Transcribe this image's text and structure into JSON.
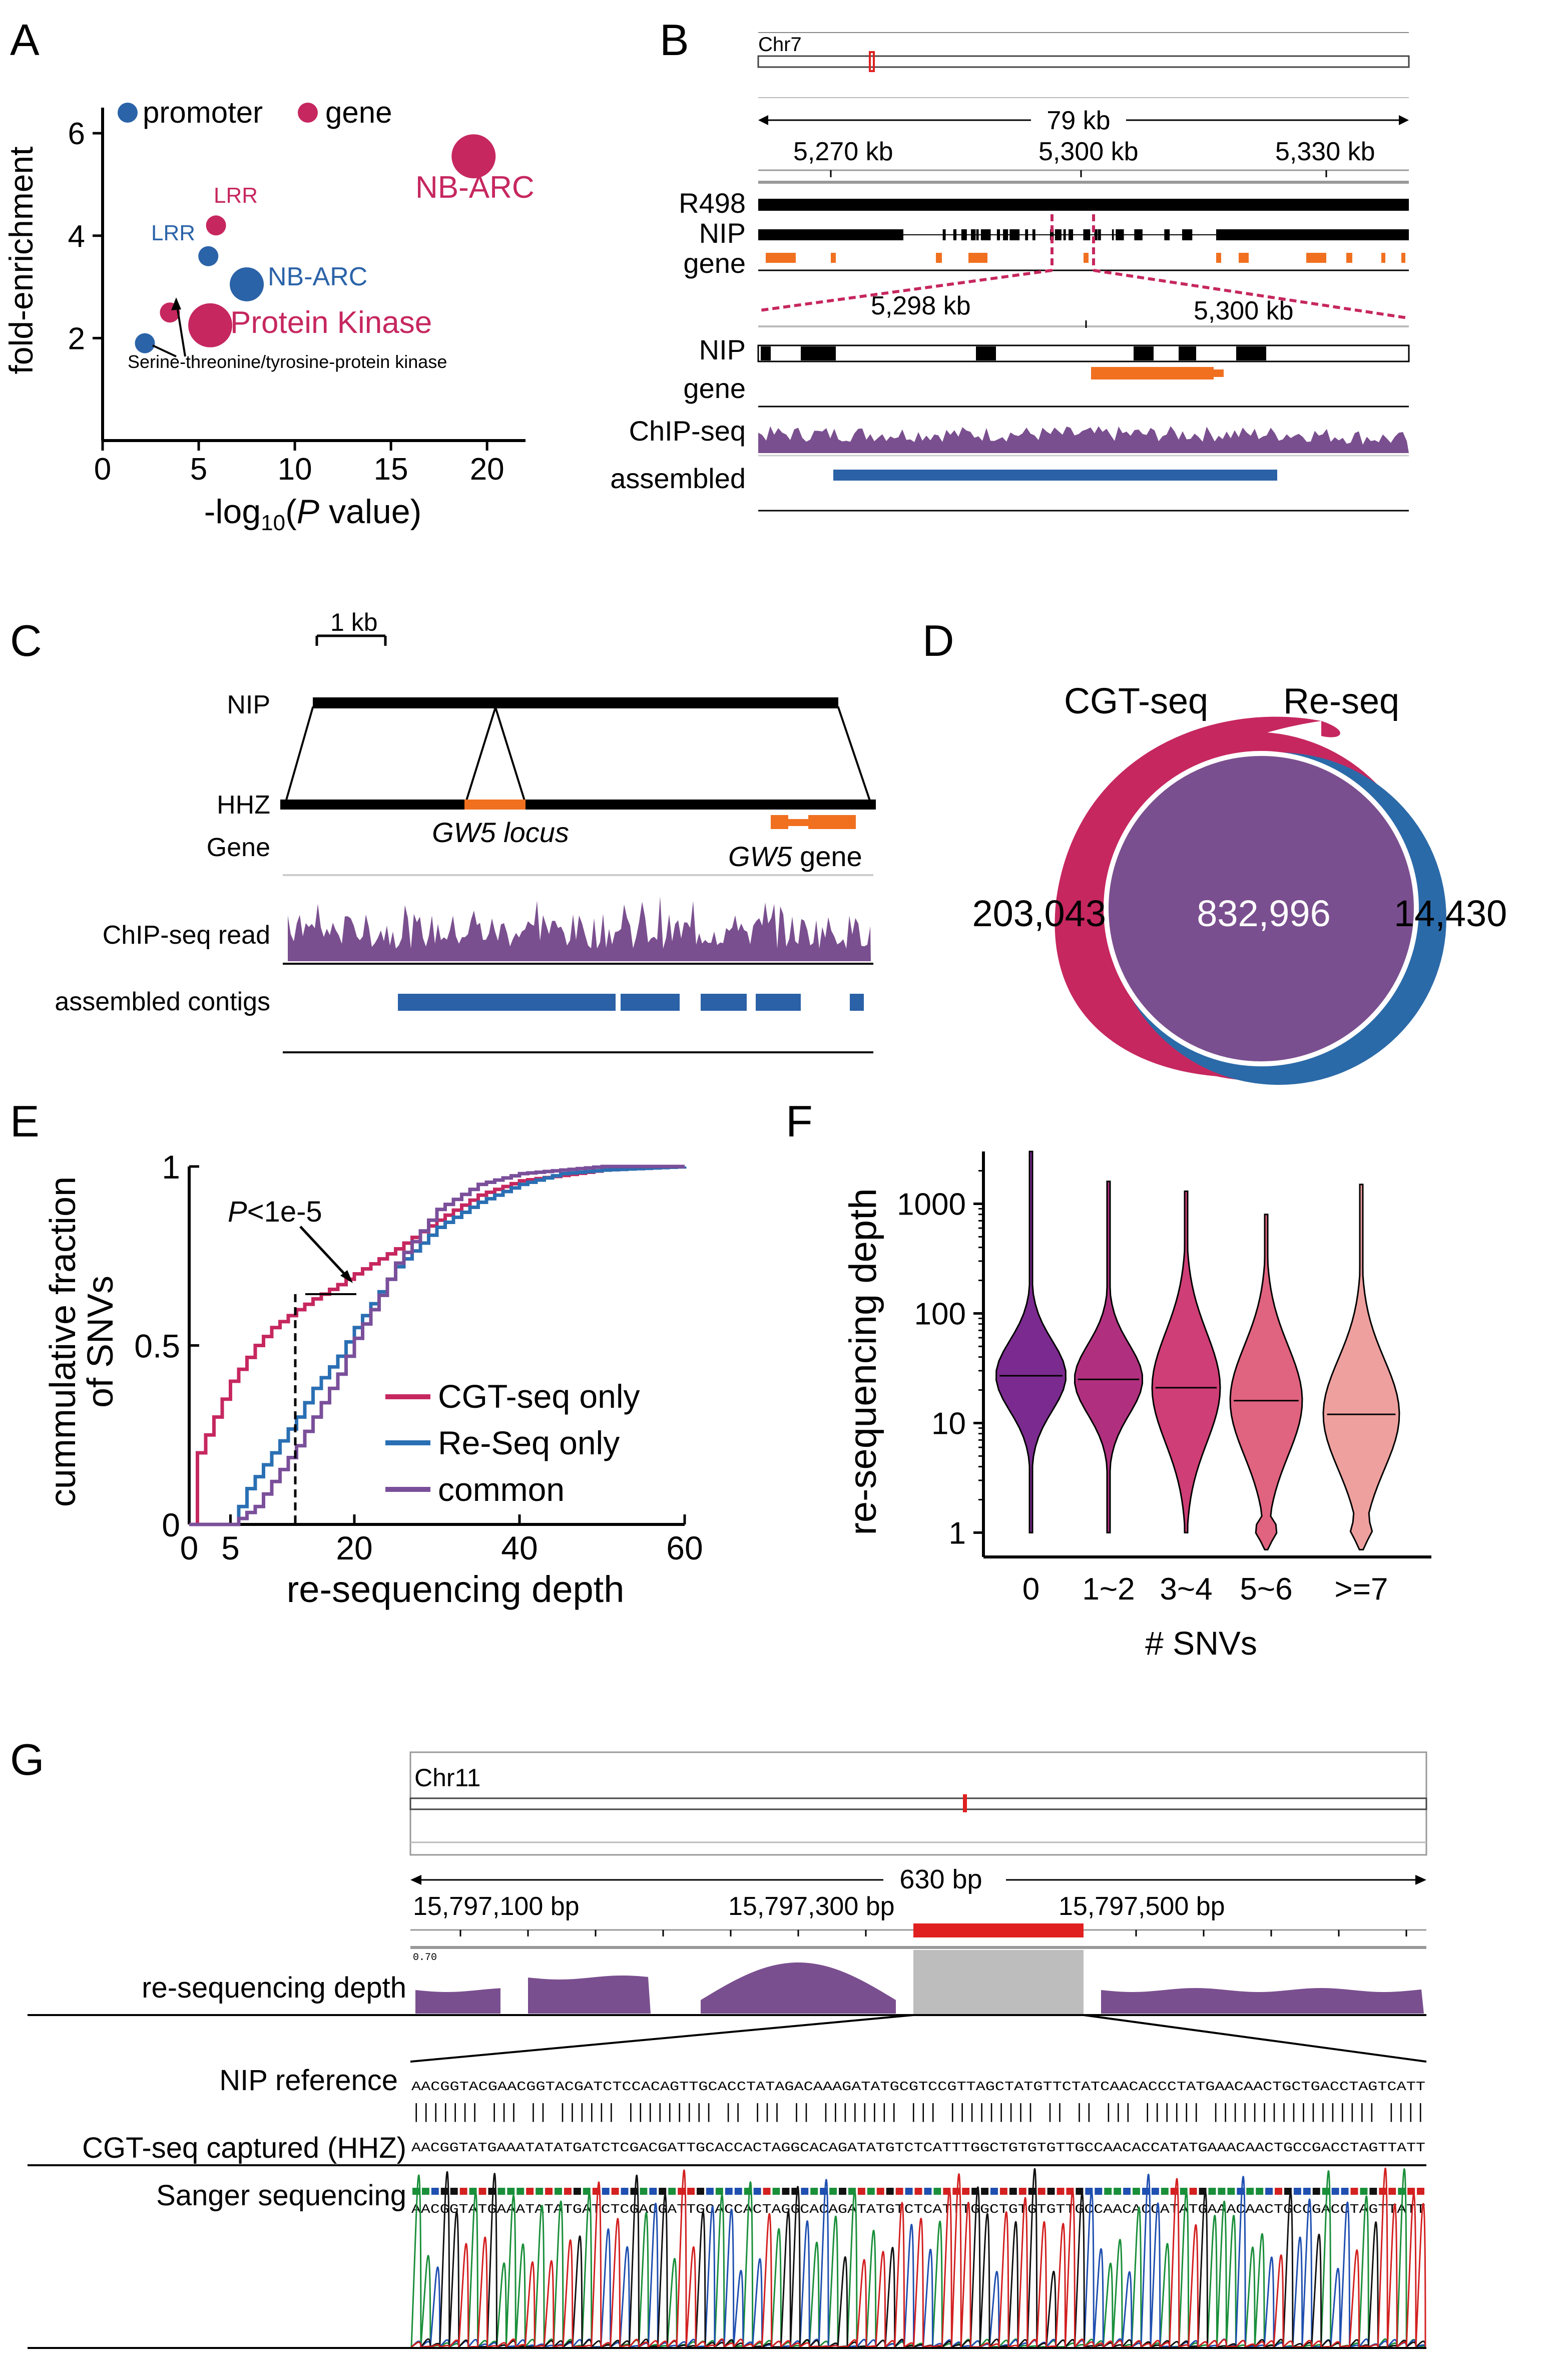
{
  "panels": {
    "a": "A",
    "b": "B",
    "c": "C",
    "d": "D",
    "e": "E",
    "f": "F",
    "g": "G"
  },
  "colors": {
    "crimson": "#c6275f",
    "blue": "#2b63a8",
    "orange": "#f07020",
    "purple": "#7a4f8f",
    "seq_blue": "#2a61a7",
    "f_violin": [
      "#7b2a8f",
      "#b0307f",
      "#cf3e76",
      "#e0637f",
      "#eea09e"
    ]
  },
  "panel_a": {
    "legend": {
      "promoter": "promoter",
      "gene": "gene"
    },
    "labels": {
      "lrr_gene": "LRR",
      "lrr_prom": "LRR",
      "nbarc_gene": "NB-ARC",
      "nbarc_prom": "NB-ARC",
      "protein_kinase": "Protein Kinase",
      "serine": "Serine-threonine/tyrosine-protein kinase"
    }
  },
  "chart_data": [
    {
      "panel": "A",
      "type": "scatter",
      "xlabel": "-log10(P value)",
      "ylabel": "fold-enrichment",
      "xlim": [
        0,
        22
      ],
      "ylim": [
        0,
        6.5
      ],
      "xticks": [
        0,
        5,
        10,
        15,
        20
      ],
      "yticks": [
        2,
        4,
        6
      ],
      "series": [
        {
          "name": "promoter",
          "color": "#2b63a8",
          "points": [
            {
              "x": 2.2,
              "y": 1.9,
              "label": "Serine-threonine/tyrosine-protein kinase",
              "size": 1
            },
            {
              "x": 5.5,
              "y": 3.6,
              "label": "LRR",
              "size": 1
            },
            {
              "x": 7.5,
              "y": 3.05,
              "label": "NB-ARC",
              "size": 1.7
            }
          ]
        },
        {
          "name": "gene",
          "color": "#c6275f",
          "points": [
            {
              "x": 3.5,
              "y": 2.5,
              "label": "",
              "size": 1
            },
            {
              "x": 5.9,
              "y": 4.2,
              "label": "LRR",
              "size": 1
            },
            {
              "x": 5.6,
              "y": 2.25,
              "label": "Protein Kinase",
              "size": 2.2
            },
            {
              "x": 19.3,
              "y": 5.55,
              "label": "NB-ARC",
              "size": 2.2
            }
          ]
        }
      ]
    },
    {
      "panel": "E",
      "type": "line",
      "xlabel": "re-sequencing depth",
      "ylabel": "cummulative fraction of SNVs",
      "xlim": [
        0,
        60
      ],
      "ylim": [
        0,
        1
      ],
      "xticks": [
        0,
        5,
        20,
        40,
        60
      ],
      "yticks": [
        0,
        0.5,
        1
      ],
      "annotation": "P<1e-5",
      "threshold_x": 13,
      "series": [
        {
          "name": "CGT-seq only",
          "color": "#c6275f",
          "x": [
            0,
            1,
            2,
            3,
            5,
            8,
            10,
            13,
            15,
            18,
            20,
            25,
            30,
            35,
            40,
            50,
            60
          ],
          "y": [
            0,
            0.2,
            0.25,
            0.3,
            0.4,
            0.5,
            0.55,
            0.6,
            0.63,
            0.67,
            0.7,
            0.77,
            0.85,
            0.92,
            0.96,
            0.99,
            1.0
          ]
        },
        {
          "name": "Re-Seq only",
          "color": "#2a6fb3",
          "x": [
            0,
            5,
            7,
            10,
            13,
            15,
            18,
            20,
            23,
            25,
            30,
            35,
            40,
            45,
            50,
            60
          ],
          "y": [
            0,
            0,
            0.1,
            0.2,
            0.3,
            0.38,
            0.47,
            0.55,
            0.65,
            0.72,
            0.83,
            0.9,
            0.95,
            0.98,
            0.99,
            1.0
          ]
        },
        {
          "name": "common",
          "color": "#7a4f9a",
          "x": [
            0,
            5,
            8,
            10,
            13,
            15,
            18,
            20,
            23,
            25,
            28,
            30,
            35,
            40,
            50,
            60
          ],
          "y": [
            0,
            0,
            0.05,
            0.12,
            0.22,
            0.3,
            0.42,
            0.52,
            0.64,
            0.73,
            0.82,
            0.88,
            0.95,
            0.98,
            1.0,
            1.0
          ]
        }
      ]
    },
    {
      "panel": "F",
      "type": "violin",
      "xlabel": "# SNVs",
      "ylabel": "re-sequencing depth",
      "yscale": "log",
      "yticks": [
        1,
        10,
        100,
        1000
      ],
      "ylim": [
        0.6,
        3000
      ],
      "categories": [
        "0",
        "1~2",
        "3~4",
        "5~6",
        ">=7"
      ],
      "medians": [
        27,
        25,
        21,
        16,
        12
      ],
      "maxima": [
        3000,
        1600,
        1300,
        800,
        1500
      ],
      "minima": [
        1,
        1,
        1,
        0.7,
        0.7
      ]
    }
  ],
  "panel_b": {
    "chrom": "Chr7",
    "span": "79 kb",
    "ticks": [
      "5,270 kb",
      "5,300 kb",
      "5,330 kb"
    ],
    "tracks": {
      "r498": "R498",
      "nip": "NIP",
      "gene": "gene"
    },
    "zoom_ticks": [
      "5,298 kb",
      "5,300 kb"
    ],
    "zoom_tracks": {
      "nip": "NIP",
      "gene": "gene",
      "chip": "ChIP-seq",
      "assembled": "assembled"
    }
  },
  "panel_c": {
    "scale": "1 kb",
    "nip": "NIP",
    "hhz": "HHZ",
    "gene": "Gene",
    "locus": "GW5 locus",
    "gw5": "GW5",
    "gene_word": "gene",
    "chip": "ChIP-seq read",
    "assembled": "assembled contigs"
  },
  "panel_d": {
    "cgt": "CGT-seq",
    "reseq": "Re-seq",
    "left": "203,043",
    "center": "832,996",
    "right": "14,430"
  },
  "panel_e": {
    "legend": {
      "cgt": "CGT-seq only",
      "reseq": "Re-Seq only",
      "common": "common"
    },
    "ylabel1": "cummulative fraction",
    "ylabel2": "of SNVs",
    "xlabel": "re-sequencing depth",
    "p_italic": "P",
    "p_rest": "<1e-5"
  },
  "panel_f": {
    "ylabel": "re-sequencing depth",
    "xlabel": "# SNVs"
  },
  "panel_g": {
    "chrom": "Chr11",
    "span": "630 bp",
    "ticks": [
      "15,797,100 bp",
      "15,797,300 bp",
      "15,797,500 bp"
    ],
    "depth_label": "re-sequencing depth",
    "depth_scale": "0.70",
    "nip_label": "NIP reference",
    "cgt_label": "CGT-seq captured (HHZ)",
    "sanger_label": "Sanger sequencing",
    "nip_seq": "AACGGTACGAACGGTACGATCTCCACAGTTGCACCTATAGACAAAGATATGCGTCCGTTAGCTATGTTCTATCAACACCCTATGAACAACTGCTGACCTAGTCATT",
    "match_line": "||||||| |||    || |||||| |||||||||    || ||| || |||||||| ||| |||||||||    || || ||| |||||| ||||||||||||||||| ||||",
    "cgt_seq": "AACGGTATGAAATATATGATCTCGACGATTGCACCACTAGGCACAGATATGTCTCATTTGGCTGTGTGTTGCCAACACCATATGAAACAACTGCCGACCTAGTTATT"
  }
}
